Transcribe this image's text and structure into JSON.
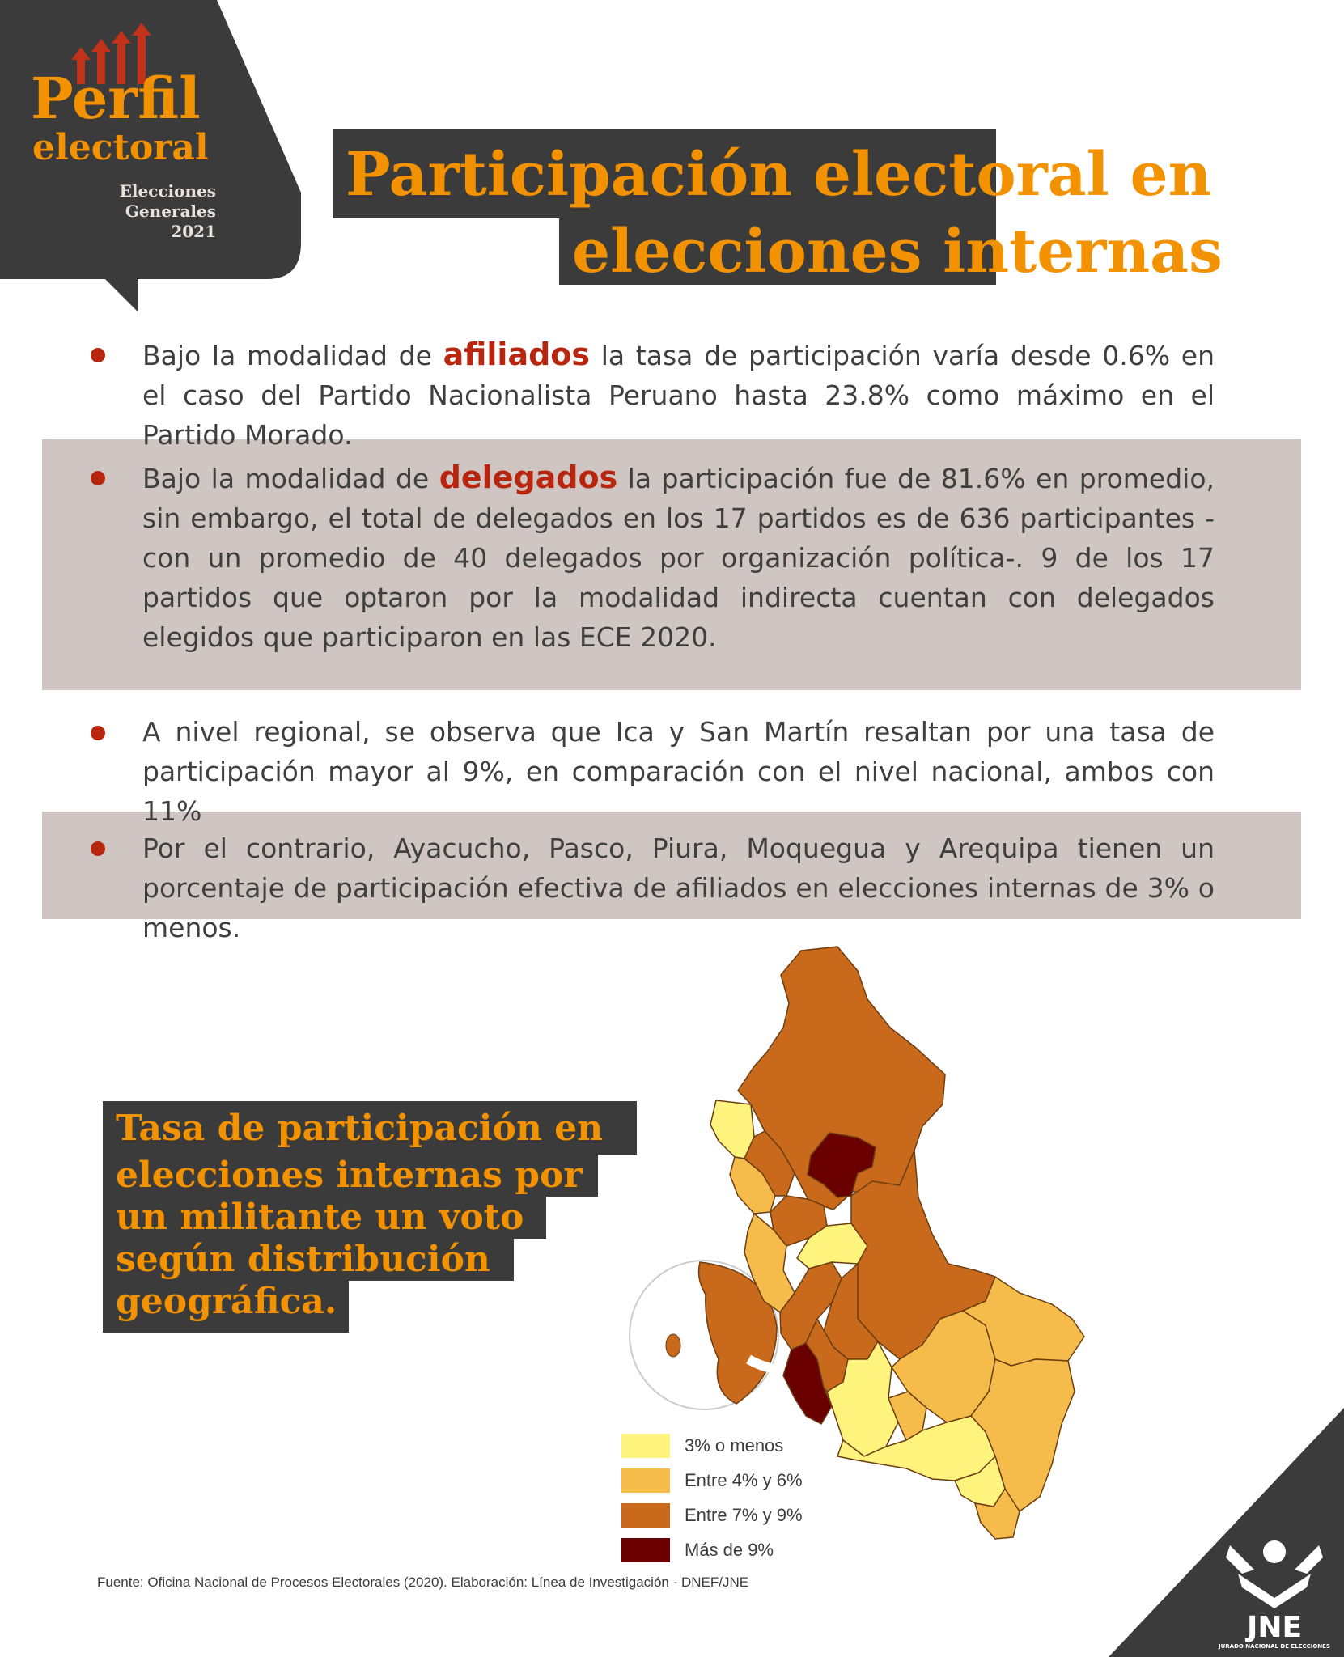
{
  "brand": {
    "name": "Perfil",
    "sub": "electoral",
    "edition_line1": "Elecciones",
    "edition_line2": "Generales",
    "edition_year": "2021"
  },
  "title": {
    "line1": "Participación electoral en",
    "line2": "elecciones internas"
  },
  "bullets": [
    {
      "before": "Bajo la modalidad de ",
      "highlight": "afiliados",
      "after": " la tasa de participación varía desde 0.6% en el caso del Partido Nacionalista Peruano hasta 23.8% como máximo en el Partido Morado."
    },
    {
      "before": "Bajo la modalidad de ",
      "highlight": "delegados",
      "after": " la participación fue de 81.6% en promedio, sin embargo, el total de delegados en los 17 partidos es de 636 participantes - con un promedio de 40 delegados por organización política-. 9 de los 17 partidos que optaron por la modalidad indirecta cuentan con delegados elegidos que participaron en las ECE 2020."
    },
    {
      "before": "A nivel regional, se observa que Ica y San Martín resaltan por una tasa de participación mayor al 9%, en comparación con el nivel nacional, ambos con 11%",
      "highlight": "",
      "after": ""
    },
    {
      "before": "Por el contrario, Ayacucho, Pasco, Piura, Moquegua y Arequipa tienen un porcentaje de participación efectiva de afiliados en elecciones internas de 3% o menos.",
      "highlight": "",
      "after": ""
    }
  ],
  "map": {
    "title_lines": [
      "Tasa de participación en",
      "elecciones internas por",
      "un militante un voto",
      "según distribución",
      "geográfica."
    ],
    "legend": [
      {
        "label": "3% o menos",
        "color": "#fdf37d"
      },
      {
        "label": "Entre 4% y 6%",
        "color": "#f5bc4c"
      },
      {
        "label": "Entre 7% y 9%",
        "color": "#c8691c"
      },
      {
        "label": "Más de 9%",
        "color": "#6a0000"
      }
    ]
  },
  "source": "Fuente: Oficina Nacional de Procesos Electorales (2020). Elaboración: Línea de Investigación - DNEF/JNE",
  "logo": {
    "text": "JNE",
    "subtext": "JURADO NACIONAL DE ELECCIONES"
  }
}
